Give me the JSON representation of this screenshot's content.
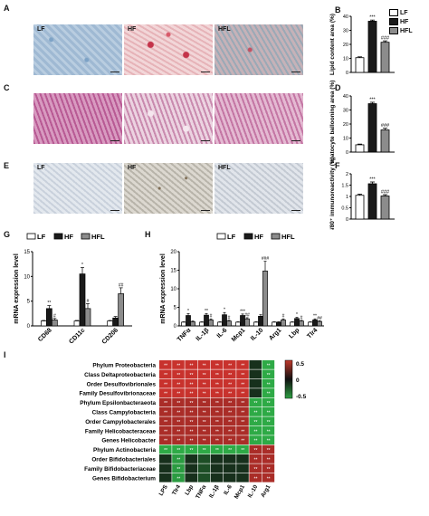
{
  "panels": {
    "A": "A",
    "B": "B",
    "C": "C",
    "D": "D",
    "E": "E",
    "F": "F",
    "G": "G",
    "H": "H",
    "I": "I"
  },
  "groups": [
    "LF",
    "HF",
    "HFL"
  ],
  "colors": {
    "LF": "#ffffff",
    "HF": "#1a1a1a",
    "HFL": "#8c8c8c"
  },
  "micrographs": {
    "oil_red": [
      "LF",
      "HF",
      "HFL"
    ],
    "he": [
      "",
      "",
      ""
    ],
    "ihc": [
      "LF",
      "HF",
      "HFL"
    ]
  },
  "chart_B": {
    "type": "bar",
    "ylabel": "Lipid content area (%)",
    "categories": [
      "LF",
      "HF",
      "HFL"
    ],
    "values": [
      10.5,
      36.5,
      21.5
    ],
    "errors": [
      0.6,
      0.8,
      1.0
    ],
    "ylim": [
      0,
      40
    ],
    "yticks": [
      0,
      10,
      20,
      30,
      40
    ],
    "sig": [
      "",
      "***",
      "###"
    ]
  },
  "chart_D": {
    "type": "bar",
    "ylabel": "Hepatocyte ballooning area (%)",
    "categories": [
      "LF",
      "HF",
      "HFL"
    ],
    "values": [
      5.2,
      34.5,
      15.8
    ],
    "errors": [
      0.5,
      1.0,
      1.2
    ],
    "ylim": [
      0,
      40
    ],
    "yticks": [
      0,
      10,
      20,
      30,
      40
    ],
    "sig": [
      "",
      "***",
      "###"
    ]
  },
  "chart_F": {
    "type": "bar",
    "ylabel": "F4/80⁺ immunoreactivity (%)",
    "categories": [
      "LF",
      "HF",
      "HFL"
    ],
    "values": [
      1.05,
      1.56,
      1.02
    ],
    "errors": [
      0.05,
      0.08,
      0.06
    ],
    "ylim": [
      0,
      2.0
    ],
    "yticks": [
      0.0,
      0.5,
      1.0,
      1.5,
      2.0
    ],
    "sig": [
      "",
      "***",
      "###"
    ]
  },
  "chart_G": {
    "type": "bar",
    "ylabel": "mRNA expression level",
    "categories": [
      "CD68",
      "CD11c",
      "CD206"
    ],
    "series": [
      {
        "name": "LF",
        "values": [
          1.0,
          1.0,
          1.0
        ],
        "errors": [
          0.1,
          0.1,
          0.1
        ],
        "sig": [
          "",
          "",
          ""
        ]
      },
      {
        "name": "HF",
        "values": [
          3.5,
          10.5,
          1.6
        ],
        "errors": [
          0.6,
          1.3,
          0.3
        ],
        "sig": [
          "**",
          "*",
          ""
        ]
      },
      {
        "name": "HFL",
        "values": [
          1.2,
          3.5,
          6.5
        ],
        "errors": [
          0.3,
          1.0,
          1.2
        ],
        "sig": [
          "#",
          "#",
          "##"
        ]
      }
    ],
    "ylim": [
      0,
      15
    ],
    "yticks": [
      0,
      5,
      10,
      15
    ]
  },
  "chart_H": {
    "type": "bar",
    "ylabel": "mRNA expression level",
    "categories": [
      "TNFα",
      "IL-1β",
      "IL-6",
      "Mcp1",
      "IL-10",
      "Arg1",
      "Lbp",
      "Tlr4"
    ],
    "series": [
      {
        "name": "LF",
        "values": [
          1.0,
          1.0,
          1.0,
          1.0,
          1.0,
          1.0,
          1.0,
          1.0
        ],
        "errors": [
          0.1,
          0.1,
          0.1,
          0.1,
          0.1,
          0.1,
          0.1,
          0.1
        ],
        "sig": [
          "",
          "",
          "",
          "",
          "",
          "",
          "",
          ""
        ]
      },
      {
        "name": "HF",
        "values": [
          2.8,
          2.9,
          3.0,
          2.8,
          2.6,
          1.0,
          2.0,
          1.6
        ],
        "errors": [
          0.5,
          0.4,
          0.6,
          0.4,
          0.4,
          0.1,
          0.3,
          0.3
        ],
        "sig": [
          "*",
          "**",
          "*",
          "***",
          "",
          "",
          "*",
          "**"
        ]
      },
      {
        "name": "HFL",
        "values": [
          1.1,
          1.6,
          1.3,
          1.9,
          14.8,
          1.6,
          1.3,
          1.2
        ],
        "errors": [
          0.2,
          0.3,
          0.2,
          0.3,
          2.6,
          0.3,
          0.2,
          0.2
        ],
        "sig": [
          "",
          "#",
          "#",
          "##",
          "###",
          "#",
          "#",
          "##"
        ]
      }
    ],
    "ylim": [
      0,
      20
    ],
    "yticks": [
      0,
      5,
      10,
      15,
      20
    ]
  },
  "heatmap": {
    "type": "heatmap",
    "rows": [
      "Phylum Proteobacteria",
      "Class Deltaproteobacteria",
      "Order Desulfovibrionales",
      "Family Desulfovibrionaceae",
      "Phylum Epsilonbacteraeota",
      "Class Campylobacteria",
      "Order Campylobacterales",
      "Family Helicobacteraceae",
      "Genes Helicobacter",
      "Phylum Actinobacteria",
      "Order Bifidobacteriales",
      "Family Bifidobacteriaceae",
      "Genes Bifidobacterium"
    ],
    "cols": [
      "LPS",
      "Tlr4",
      "Lbp",
      "TNFα",
      "IL-1β",
      "IL-6",
      "Mcp1",
      "IL-10",
      "Arg1"
    ],
    "values": [
      [
        0.6,
        0.6,
        0.6,
        0.6,
        0.6,
        0.6,
        0.6,
        -0.1,
        -0.5
      ],
      [
        0.6,
        0.6,
        0.6,
        0.6,
        0.6,
        0.6,
        0.6,
        -0.1,
        -0.5
      ],
      [
        0.6,
        0.6,
        0.6,
        0.6,
        0.6,
        0.6,
        0.6,
        -0.1,
        -0.5
      ],
      [
        0.6,
        0.6,
        0.6,
        0.6,
        0.6,
        0.6,
        0.6,
        -0.1,
        -0.5
      ],
      [
        0.5,
        0.5,
        0.5,
        0.5,
        0.5,
        0.5,
        0.5,
        -0.5,
        -0.5
      ],
      [
        0.5,
        0.5,
        0.5,
        0.5,
        0.5,
        0.5,
        0.5,
        -0.5,
        -0.5
      ],
      [
        0.5,
        0.5,
        0.5,
        0.5,
        0.5,
        0.5,
        0.5,
        -0.5,
        -0.5
      ],
      [
        0.5,
        0.5,
        0.5,
        0.5,
        0.5,
        0.5,
        0.5,
        -0.5,
        -0.5
      ],
      [
        0.5,
        0.5,
        0.5,
        0.5,
        0.5,
        0.5,
        0.5,
        -0.5,
        -0.5
      ],
      [
        -0.5,
        -0.5,
        -0.5,
        -0.5,
        -0.5,
        -0.5,
        -0.5,
        0.5,
        0.5
      ],
      [
        -0.1,
        -0.45,
        -0.1,
        -0.2,
        -0.1,
        -0.1,
        -0.1,
        0.5,
        0.5
      ],
      [
        -0.1,
        -0.45,
        -0.1,
        -0.2,
        -0.1,
        -0.1,
        -0.1,
        0.5,
        0.5
      ],
      [
        -0.1,
        -0.45,
        -0.1,
        -0.2,
        -0.1,
        -0.1,
        -0.1,
        0.5,
        0.5
      ]
    ],
    "sig_rows_all": [
      "**",
      "**",
      "**",
      "**",
      "**",
      "**",
      "**",
      "**",
      "**",
      "**"
    ],
    "colorbar": {
      "ticks": [
        "0.5",
        "0",
        "-0.5"
      ],
      "colors": [
        "#c0392b",
        "#111111",
        "#2ea043"
      ]
    }
  }
}
